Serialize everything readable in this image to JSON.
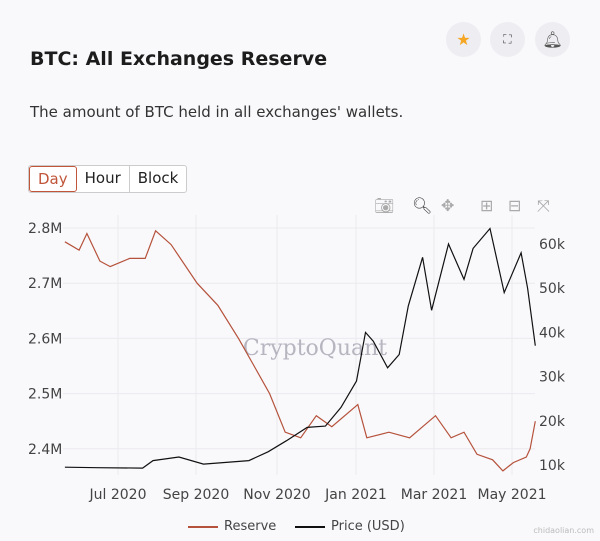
{
  "header": {
    "title": "BTC: All Exchanges Reserve",
    "description": "The amount of BTC held in all exchanges' wallets.",
    "icons": [
      "star-icon",
      "fullscreen-icon",
      "bell-icon"
    ],
    "star_color": "#f5a623"
  },
  "tabs": [
    {
      "label": "Day",
      "active": true
    },
    {
      "label": "Hour"
    },
    {
      "label": "Block"
    }
  ],
  "toolbar": [
    "camera-icon",
    "zoom-icon",
    "pan-icon",
    "zoom-in-icon",
    "zoom-out-icon",
    "autoscale-icon"
  ],
  "watermark": "CryptoQuant",
  "corner_watermark": "chidaolian.com",
  "chart_data": {
    "type": "line",
    "grid": true,
    "legend_placement": "bottom",
    "x_ticks": [
      "Jul 2020",
      "Sep 2020",
      "Nov 2020",
      "Jan 2021",
      "Mar 2021",
      "May 2021"
    ],
    "y_left_ticks": [
      "2.8M",
      "2.7M",
      "2.6M",
      "2.5M",
      "2.4M"
    ],
    "y_right_ticks": [
      "60k",
      "50k",
      "40k",
      "30k",
      "20k",
      "10k"
    ],
    "series": [
      {
        "name": "Reserve",
        "axis": "left",
        "color": "#b5523b",
        "points": [
          [
            "2020-05-21",
            2.775
          ],
          [
            "2020-06-01",
            2.76
          ],
          [
            "2020-06-07",
            2.79
          ],
          [
            "2020-06-17",
            2.74
          ],
          [
            "2020-06-25",
            2.73
          ],
          [
            "2020-07-10",
            2.745
          ],
          [
            "2020-07-22",
            2.745
          ],
          [
            "2020-07-30",
            2.795
          ],
          [
            "2020-08-11",
            2.77
          ],
          [
            "2020-08-31",
            2.7
          ],
          [
            "2020-09-16",
            2.66
          ],
          [
            "2020-10-02",
            2.6
          ],
          [
            "2020-10-14",
            2.55
          ],
          [
            "2020-10-26",
            2.5
          ],
          [
            "2020-11-07",
            2.43
          ],
          [
            "2020-11-19",
            2.42
          ],
          [
            "2020-12-01",
            2.46
          ],
          [
            "2020-12-13",
            2.44
          ],
          [
            "2021-01-02",
            2.48
          ],
          [
            "2021-01-09",
            2.42
          ],
          [
            "2021-01-26",
            2.43
          ],
          [
            "2021-02-11",
            2.42
          ],
          [
            "2021-03-03",
            2.46
          ],
          [
            "2021-03-15",
            2.42
          ],
          [
            "2021-03-25",
            2.43
          ],
          [
            "2021-04-04",
            2.39
          ],
          [
            "2021-04-16",
            2.38
          ],
          [
            "2021-04-24",
            2.36
          ],
          [
            "2021-05-02",
            2.375
          ],
          [
            "2021-05-12",
            2.385
          ],
          [
            "2021-05-15",
            2.4
          ],
          [
            "2021-05-19",
            2.45
          ]
        ]
      },
      {
        "name": "Price (USD)",
        "axis": "right",
        "color": "#111111",
        "points": [
          [
            "2020-05-21",
            9500
          ],
          [
            "2020-06-15",
            9400
          ],
          [
            "2020-07-20",
            9300
          ],
          [
            "2020-07-28",
            11000
          ],
          [
            "2020-08-17",
            11800
          ],
          [
            "2020-09-05",
            10200
          ],
          [
            "2020-10-10",
            11000
          ],
          [
            "2020-10-25",
            13000
          ],
          [
            "2020-11-08",
            15500
          ],
          [
            "2020-11-24",
            18500
          ],
          [
            "2020-12-08",
            18800
          ],
          [
            "2020-12-20",
            23000
          ],
          [
            "2021-01-01",
            29000
          ],
          [
            "2021-01-08",
            40000
          ],
          [
            "2021-01-14",
            38000
          ],
          [
            "2021-01-25",
            32000
          ],
          [
            "2021-02-03",
            35000
          ],
          [
            "2021-02-10",
            46000
          ],
          [
            "2021-02-21",
            57000
          ],
          [
            "2021-02-28",
            45000
          ],
          [
            "2021-03-13",
            60000
          ],
          [
            "2021-03-25",
            52000
          ],
          [
            "2021-04-01",
            59000
          ],
          [
            "2021-04-14",
            63500
          ],
          [
            "2021-04-25",
            49000
          ],
          [
            "2021-05-08",
            58000
          ],
          [
            "2021-05-13",
            50000
          ],
          [
            "2021-05-19",
            37000
          ]
        ]
      }
    ]
  }
}
